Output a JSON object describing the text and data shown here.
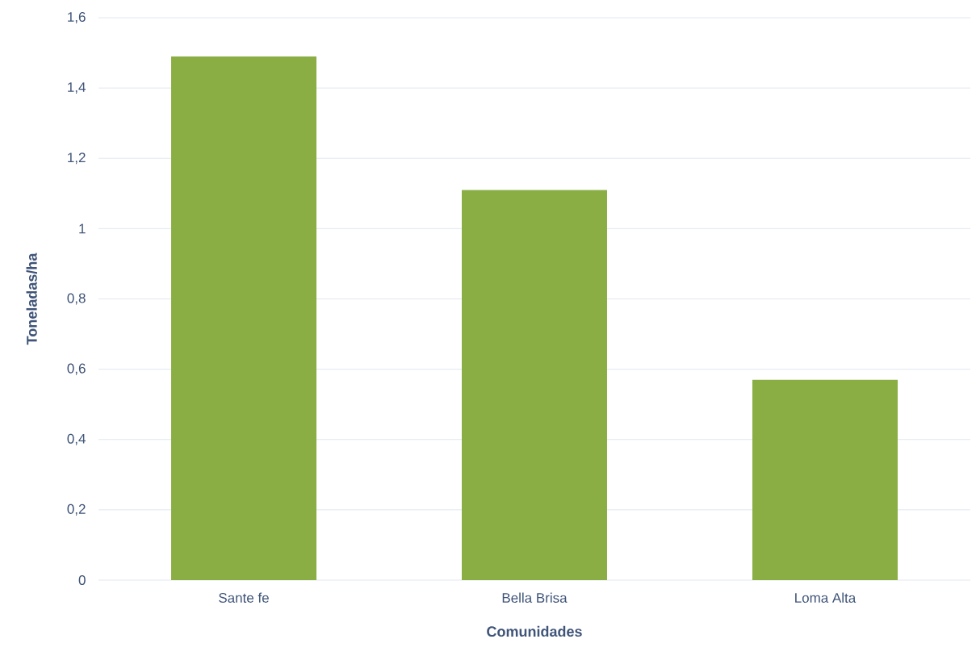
{
  "chart_data": {
    "type": "bar",
    "xlabel": "Comunidades",
    "ylabel": "Toneladas/ha",
    "categories": [
      "Sante fe",
      "Bella Brisa",
      "Loma Alta"
    ],
    "values": [
      1.49,
      1.11,
      0.57
    ],
    "color": "#8aae44",
    "ylim": [
      0,
      1.6
    ],
    "yticks": [
      0,
      {
        "value": 0.2,
        "label": "0,2"
      },
      {
        "value": 0.4,
        "label": "0,4"
      },
      {
        "value": 0.6,
        "label": "0,6"
      },
      {
        "value": 0.8,
        "label": "0,8"
      },
      1,
      {
        "value": 1.2,
        "label": "1,2"
      },
      {
        "value": 1.4,
        "label": "1,4"
      },
      {
        "value": 1.6,
        "label": "1,6"
      }
    ],
    "grid": "y"
  }
}
